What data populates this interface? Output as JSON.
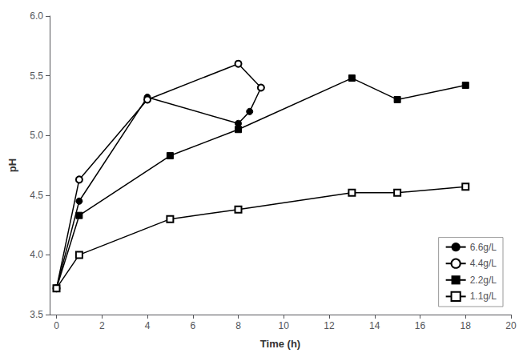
{
  "chart_data": {
    "type": "line",
    "xlabel": "Time (h)",
    "ylabel": "pH",
    "series": [
      {
        "name": "6.6g/L",
        "color": "black",
        "marker": "circle",
        "x": [
          0,
          1,
          4,
          8,
          8.5,
          9
        ],
        "values": [
          3.72,
          4.45,
          5.32,
          5.1,
          5.2,
          5.4
        ]
      },
      {
        "name": "4.4g/L",
        "color": "black",
        "marker": "circle-open",
        "x": [
          0,
          1,
          4,
          8,
          9
        ],
        "values": [
          3.72,
          4.63,
          5.3,
          5.6,
          5.4
        ]
      },
      {
        "name": "2.2g/L",
        "color": "black",
        "marker": "square",
        "x": [
          0,
          1,
          5,
          8,
          13,
          15,
          18
        ],
        "values": [
          3.72,
          4.33,
          4.83,
          5.05,
          5.48,
          5.3,
          5.42
        ]
      },
      {
        "name": "1.1g/L",
        "color": "black",
        "marker": "square-open",
        "x": [
          0,
          1,
          5,
          8,
          13,
          15,
          18
        ],
        "values": [
          3.72,
          4.0,
          4.3,
          4.38,
          4.52,
          4.52,
          4.57
        ]
      }
    ],
    "xlim": [
      -0.3,
      20
    ],
    "ylim": [
      3.5,
      6.0
    ],
    "xticks": [
      0,
      2,
      4,
      6,
      8,
      10,
      12,
      14,
      16,
      18,
      20
    ],
    "yticks": [
      3.5,
      {
        "value": 4.0,
        "label": "4.0"
      },
      4.5,
      {
        "value": 5.0,
        "label": "5.0"
      },
      5.5,
      {
        "value": 6.0,
        "label": "6.0"
      }
    ],
    "grid": false,
    "legend": "lower right"
  }
}
